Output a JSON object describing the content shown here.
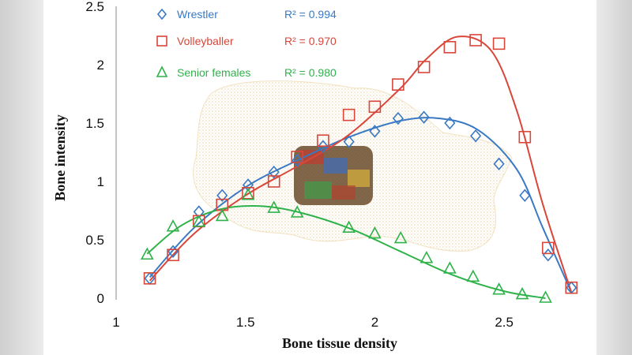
{
  "chart_data": {
    "type": "scatter",
    "xlabel": "Bone tissue density",
    "ylabel": "Bone intensity",
    "xlim": [
      1,
      2.75
    ],
    "ylim": [
      0,
      2.5
    ],
    "x_ticks": [
      "1",
      "1.5",
      "2",
      "2.5"
    ],
    "y_ticks": [
      "0",
      "0.5",
      "1",
      "1.5",
      "2",
      "2.5"
    ],
    "legend_position": "top-left",
    "grid": false,
    "series": [
      {
        "name": "Wrestler",
        "r2_label": "R² = 0.994",
        "marker": "diamond",
        "color": "#3a79c3",
        "x": [
          1.13,
          1.22,
          1.32,
          1.41,
          1.51,
          1.61,
          1.7,
          1.8,
          1.9,
          2.0,
          2.09,
          2.19,
          2.29,
          2.39,
          2.48,
          2.58,
          2.67,
          2.76
        ],
        "y": [
          0.17,
          0.4,
          0.74,
          0.88,
          0.97,
          1.08,
          1.18,
          1.3,
          1.34,
          1.43,
          1.54,
          1.55,
          1.5,
          1.39,
          1.15,
          0.88,
          0.37,
          0.09
        ],
        "fit_x": [
          1.13,
          1.3,
          1.5,
          1.7,
          1.9,
          2.1,
          2.25,
          2.4,
          2.55,
          2.65,
          2.76
        ],
        "fit_y": [
          0.18,
          0.6,
          0.95,
          1.18,
          1.38,
          1.52,
          1.54,
          1.44,
          1.1,
          0.6,
          0.05
        ]
      },
      {
        "name": "Volleyballer",
        "r2_label": "R² = 0.970",
        "marker": "square",
        "color": "#d9463a",
        "x": [
          1.13,
          1.22,
          1.32,
          1.41,
          1.51,
          1.61,
          1.7,
          1.8,
          1.9,
          2.0,
          2.09,
          2.19,
          2.29,
          2.39,
          2.48,
          2.58,
          2.67,
          2.76
        ],
        "y": [
          0.17,
          0.37,
          0.66,
          0.8,
          0.9,
          1.0,
          1.21,
          1.35,
          1.57,
          1.64,
          1.83,
          1.98,
          2.15,
          2.21,
          2.18,
          1.38,
          0.43,
          0.09
        ],
        "fit_x": [
          1.13,
          1.3,
          1.5,
          1.7,
          1.9,
          2.1,
          2.2,
          2.32,
          2.45,
          2.55,
          2.65,
          2.76
        ],
        "fit_y": [
          0.15,
          0.55,
          0.88,
          1.13,
          1.4,
          1.8,
          2.05,
          2.24,
          2.12,
          1.6,
          0.8,
          0.05
        ]
      },
      {
        "name": "Senior females",
        "r2_label": "R² = 0.980",
        "marker": "triangle",
        "color": "#2fb24a",
        "x": [
          1.12,
          1.22,
          1.32,
          1.41,
          1.51,
          1.61,
          1.7,
          1.9,
          2.0,
          2.1,
          2.2,
          2.29,
          2.38,
          2.48,
          2.57,
          2.66
        ],
        "y": [
          0.37,
          0.61,
          0.65,
          0.7,
          0.88,
          0.77,
          0.73,
          0.6,
          0.55,
          0.51,
          0.34,
          0.25,
          0.18,
          0.07,
          0.03,
          0.0
        ],
        "fit_x": [
          1.12,
          1.25,
          1.4,
          1.55,
          1.7,
          1.9,
          2.1,
          2.3,
          2.5,
          2.66
        ],
        "fit_y": [
          0.38,
          0.62,
          0.76,
          0.79,
          0.74,
          0.6,
          0.4,
          0.2,
          0.06,
          0.0
        ]
      }
    ]
  }
}
